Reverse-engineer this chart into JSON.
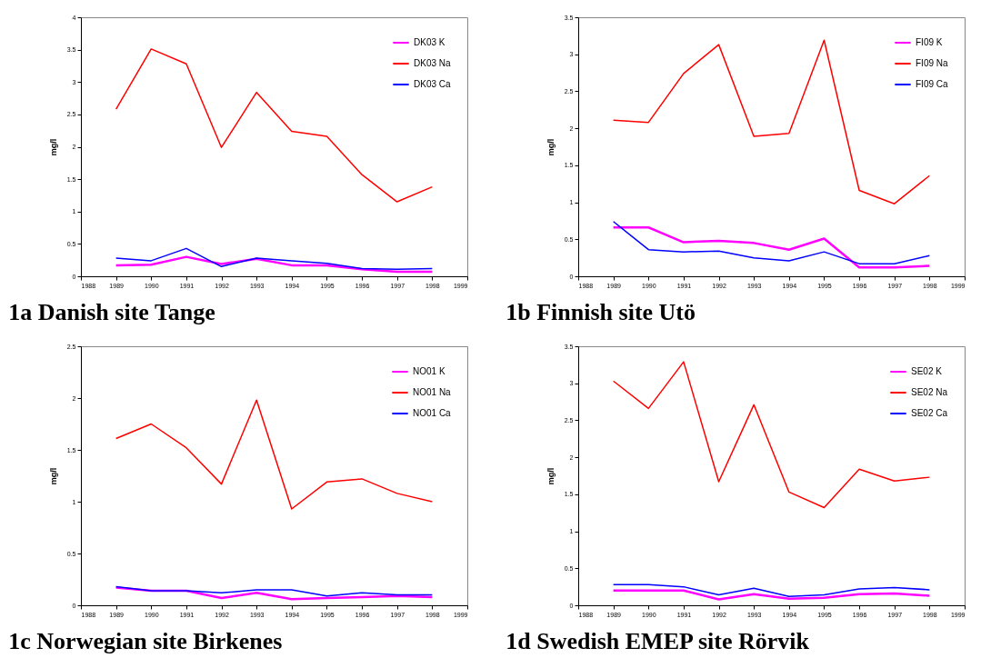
{
  "chart_data": [
    {
      "type": "line",
      "title": "1a Danish site Tange",
      "ylabel": "mg/l",
      "x": [
        1989,
        1990,
        1991,
        1992,
        1993,
        1994,
        1995,
        1996,
        1997,
        1998
      ],
      "xlim": [
        1988,
        1999
      ],
      "xticks": [
        1988,
        1989,
        1990,
        1991,
        1992,
        1993,
        1994,
        1995,
        1996,
        1997,
        1998,
        1999
      ],
      "ylim": [
        0,
        4
      ],
      "yticks": [
        0,
        0.5,
        1,
        1.5,
        2,
        2.5,
        3,
        3.5,
        4
      ],
      "legend": "top right",
      "series": [
        {
          "name": "DK03 K",
          "color": "#ff00ff",
          "values": [
            0.17,
            0.18,
            0.3,
            0.19,
            0.27,
            0.17,
            0.17,
            0.11,
            0.07,
            0.07
          ]
        },
        {
          "name": "DK03 Na",
          "color": "#ff0000",
          "values": [
            2.58,
            3.51,
            3.28,
            1.99,
            2.84,
            2.24,
            2.16,
            1.57,
            1.15,
            1.38
          ]
        },
        {
          "name": "DK03 Ca",
          "color": "#0000ff",
          "values": [
            0.28,
            0.24,
            0.43,
            0.15,
            0.28,
            0.24,
            0.2,
            0.12,
            0.11,
            0.12
          ]
        }
      ]
    },
    {
      "type": "line",
      "title": "1b Finnish site Utö",
      "ylabel": "mg/l",
      "x": [
        1989,
        1990,
        1991,
        1992,
        1993,
        1994,
        1995,
        1996,
        1997,
        1998
      ],
      "xlim": [
        1988,
        1999
      ],
      "xticks": [
        1988,
        1989,
        1990,
        1991,
        1992,
        1993,
        1994,
        1995,
        1996,
        1997,
        1998,
        1999
      ],
      "ylim": [
        0,
        3.5
      ],
      "yticks": [
        0,
        0.5,
        1,
        1.5,
        2,
        2.5,
        3,
        3.5
      ],
      "legend": "top right",
      "series": [
        {
          "name": "FI09 K",
          "color": "#ff00ff",
          "values": [
            0.66,
            0.66,
            0.46,
            0.48,
            0.45,
            0.36,
            0.51,
            0.12,
            0.12,
            0.14
          ]
        },
        {
          "name": "FI09 Na",
          "color": "#ff0000",
          "values": [
            2.11,
            2.08,
            2.74,
            3.13,
            1.89,
            1.93,
            3.19,
            1.16,
            0.98,
            1.36
          ]
        },
        {
          "name": "FI09 Ca",
          "color": "#0000ff",
          "values": [
            0.74,
            0.36,
            0.33,
            0.34,
            0.25,
            0.21,
            0.33,
            0.17,
            0.17,
            0.28
          ]
        }
      ]
    },
    {
      "type": "line",
      "title": "1c Norwegian site Birkenes",
      "ylabel": "mg/l",
      "x": [
        1989,
        1990,
        1991,
        1992,
        1993,
        1994,
        1995,
        1996,
        1997,
        1998
      ],
      "xlim": [
        1988,
        1999
      ],
      "xticks": [
        1988,
        1989,
        1990,
        1991,
        1992,
        1993,
        1994,
        1995,
        1996,
        1997,
        1998,
        1999
      ],
      "ylim": [
        0,
        2.5
      ],
      "yticks": [
        0,
        0.5,
        1,
        1.5,
        2,
        2.5
      ],
      "legend": "top right",
      "series": [
        {
          "name": "NO01 K",
          "color": "#ff00ff",
          "values": [
            0.17,
            0.14,
            0.14,
            0.07,
            0.12,
            0.06,
            0.07,
            0.08,
            0.09,
            0.08
          ]
        },
        {
          "name": "NO01 Na",
          "color": "#ff0000",
          "values": [
            1.61,
            1.75,
            1.52,
            1.17,
            1.98,
            0.93,
            1.19,
            1.22,
            1.08,
            1.0
          ]
        },
        {
          "name": "NO01 Ca",
          "color": "#0000ff",
          "values": [
            0.18,
            0.14,
            0.14,
            0.12,
            0.15,
            0.15,
            0.09,
            0.12,
            0.1,
            0.1
          ]
        }
      ]
    },
    {
      "type": "line",
      "title": "1d Swedish EMEP site Rörvik",
      "ylabel": "mg/l",
      "x": [
        1989,
        1990,
        1991,
        1992,
        1993,
        1994,
        1995,
        1996,
        1997,
        1998
      ],
      "xlim": [
        1988,
        1999
      ],
      "xticks": [
        1988,
        1989,
        1990,
        1991,
        1992,
        1993,
        1994,
        1995,
        1996,
        1997,
        1998,
        1999
      ],
      "ylim": [
        0,
        3.5
      ],
      "yticks": [
        0,
        0.5,
        1,
        1.5,
        2,
        2.5,
        3,
        3.5
      ],
      "legend": "top right",
      "series": [
        {
          "name": "SE02 K",
          "color": "#ff00ff",
          "values": [
            0.2,
            0.2,
            0.2,
            0.08,
            0.15,
            0.09,
            0.1,
            0.15,
            0.16,
            0.13
          ]
        },
        {
          "name": "SE02 Na",
          "color": "#ff0000",
          "values": [
            3.03,
            2.66,
            3.29,
            1.67,
            2.71,
            1.53,
            1.32,
            1.84,
            1.68,
            1.73
          ]
        },
        {
          "name": "SE02 Ca",
          "color": "#0000ff",
          "values": [
            0.28,
            0.28,
            0.25,
            0.14,
            0.23,
            0.12,
            0.14,
            0.22,
            0.24,
            0.21
          ]
        }
      ]
    }
  ]
}
